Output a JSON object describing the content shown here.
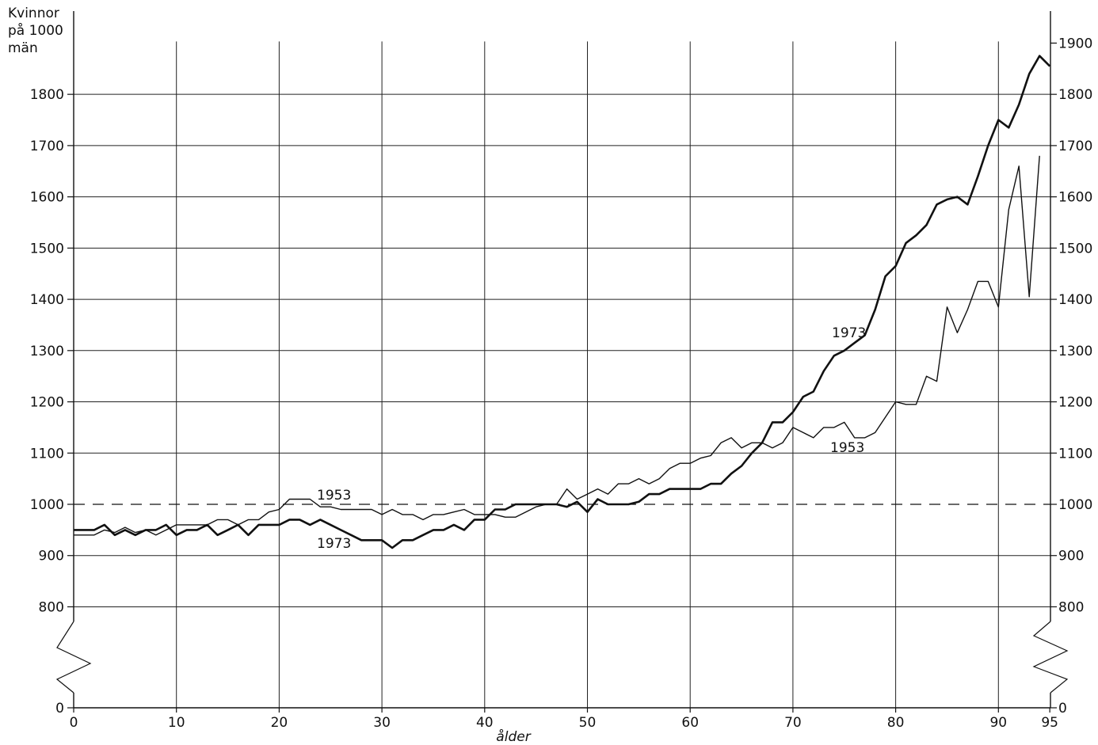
{
  "chart_data": {
    "type": "line",
    "ylabel": [
      "Kvinnor",
      "på 1000",
      "män"
    ],
    "xlabel": "ålder",
    "xlim": [
      0,
      95
    ],
    "ylim": [
      0,
      1900
    ],
    "axis_break": "between 0 and 800 on both y axes",
    "x_ticks": [
      "0",
      "10",
      "20",
      "30",
      "40",
      "50",
      "60",
      "70",
      "80",
      "90",
      "95"
    ],
    "y_ticks_left": [
      "0",
      "800",
      "900",
      "1000",
      "1100",
      "1200",
      "1300",
      "1400",
      "1500",
      "1600",
      "1700",
      "1800"
    ],
    "y_ticks_right": [
      "0",
      "800",
      "900",
      "1000",
      "1100",
      "1200",
      "1300",
      "1400",
      "1500",
      "1600",
      "1700",
      "1800",
      "1900"
    ],
    "reference_line": 1000,
    "grid": "vertical every 10 years, horizontal every 100",
    "colors": {
      "line": "#111111",
      "grid": "#222222",
      "background": "#ffffff"
    },
    "series": [
      {
        "name": "1953",
        "label_positions": [
          "upper",
          "right"
        ],
        "x": [
          0,
          1,
          2,
          3,
          4,
          5,
          6,
          7,
          8,
          9,
          10,
          11,
          12,
          13,
          14,
          15,
          16,
          17,
          18,
          19,
          20,
          21,
          22,
          23,
          24,
          25,
          26,
          27,
          28,
          29,
          30,
          31,
          32,
          33,
          34,
          35,
          36,
          37,
          38,
          39,
          40,
          41,
          42,
          43,
          44,
          45,
          46,
          47,
          48,
          49,
          50,
          51,
          52,
          53,
          54,
          55,
          56,
          57,
          58,
          59,
          60,
          61,
          62,
          63,
          64,
          65,
          66,
          67,
          68,
          69,
          70,
          71,
          72,
          73,
          74,
          75,
          76,
          77,
          78,
          79,
          80,
          81,
          82,
          83,
          84,
          85,
          86,
          87,
          88,
          89,
          90,
          91,
          92,
          93,
          94
        ],
        "values": [
          940,
          940,
          940,
          950,
          945,
          955,
          945,
          950,
          940,
          950,
          960,
          960,
          960,
          960,
          970,
          970,
          960,
          970,
          970,
          985,
          990,
          1010,
          1010,
          1010,
          995,
          995,
          990,
          990,
          990,
          990,
          980,
          990,
          980,
          980,
          970,
          980,
          980,
          985,
          990,
          980,
          980,
          980,
          975,
          975,
          985,
          995,
          1000,
          1000,
          1030,
          1010,
          1020,
          1030,
          1020,
          1040,
          1040,
          1050,
          1040,
          1050,
          1070,
          1080,
          1080,
          1090,
          1095,
          1120,
          1130,
          1110,
          1120,
          1120,
          1110,
          1120,
          1150,
          1140,
          1130,
          1150,
          1150,
          1160,
          1130,
          1130,
          1140,
          1170,
          1200,
          1195,
          1195,
          1250,
          1240,
          1385,
          1335,
          1380,
          1435,
          1435,
          1385,
          1575,
          1660,
          1405,
          1680
        ]
      },
      {
        "name": "1973",
        "label_positions": [
          "lower",
          "upper-right"
        ],
        "x": [
          0,
          1,
          2,
          3,
          4,
          5,
          6,
          7,
          8,
          9,
          10,
          11,
          12,
          13,
          14,
          15,
          16,
          17,
          18,
          19,
          20,
          21,
          22,
          23,
          24,
          25,
          26,
          27,
          28,
          29,
          30,
          31,
          32,
          33,
          34,
          35,
          36,
          37,
          38,
          39,
          40,
          41,
          42,
          43,
          44,
          45,
          46,
          47,
          48,
          49,
          50,
          51,
          52,
          53,
          54,
          55,
          56,
          57,
          58,
          59,
          60,
          61,
          62,
          63,
          64,
          65,
          66,
          67,
          68,
          69,
          70,
          71,
          72,
          73,
          74,
          75,
          76,
          77,
          78,
          79,
          80,
          81,
          82,
          83,
          84,
          85,
          86,
          87,
          88,
          89,
          90,
          91,
          92,
          93,
          94,
          95
        ],
        "values": [
          950,
          950,
          950,
          960,
          940,
          950,
          940,
          950,
          950,
          960,
          940,
          950,
          950,
          960,
          940,
          950,
          960,
          940,
          960,
          960,
          960,
          970,
          970,
          960,
          970,
          960,
          950,
          940,
          930,
          930,
          930,
          915,
          930,
          930,
          940,
          950,
          950,
          960,
          950,
          970,
          970,
          990,
          990,
          1000,
          1000,
          1000,
          1000,
          1000,
          995,
          1005,
          985,
          1010,
          1000,
          1000,
          1000,
          1005,
          1020,
          1020,
          1030,
          1030,
          1030,
          1030,
          1040,
          1040,
          1060,
          1075,
          1100,
          1120,
          1160,
          1160,
          1180,
          1210,
          1220,
          1260,
          1290,
          1300,
          1315,
          1330,
          1380,
          1445,
          1465,
          1510,
          1525,
          1545,
          1585,
          1595,
          1600,
          1585,
          1640,
          1700,
          1750,
          1735,
          1780,
          1840,
          1875,
          1855
        ]
      }
    ]
  }
}
